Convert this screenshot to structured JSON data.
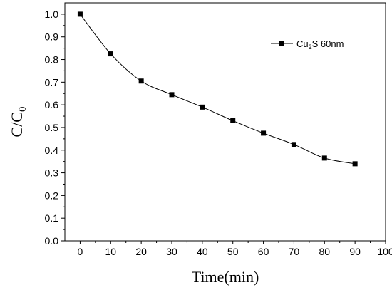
{
  "chart_data": {
    "type": "line",
    "xlabel": "Time(min)",
    "ylabel": {
      "main": "C/C",
      "sub": "0"
    },
    "xlim": [
      -5,
      100
    ],
    "ylim": [
      0,
      1.05
    ],
    "xticks": [
      "0",
      "10",
      "20",
      "30",
      "40",
      "50",
      "60",
      "70",
      "80",
      "90",
      "100"
    ],
    "yticks": [
      "0.0",
      "0.1",
      "0.2",
      "0.3",
      "0.4",
      "0.5",
      "0.6",
      "0.7",
      "0.8",
      "0.9",
      "1.0"
    ],
    "legend_position": "top-right",
    "grid": false,
    "series": [
      {
        "name": "Cu2S 60nm",
        "legend_label": {
          "prefix": "Cu",
          "sub": "2",
          "suffix": "S 60nm"
        },
        "marker": "square",
        "color": "#000000",
        "x": [
          0,
          10,
          20,
          30,
          40,
          50,
          60,
          70,
          80,
          90
        ],
        "y": [
          1.0,
          0.825,
          0.705,
          0.645,
          0.59,
          0.53,
          0.475,
          0.425,
          0.365,
          0.34
        ]
      }
    ]
  }
}
